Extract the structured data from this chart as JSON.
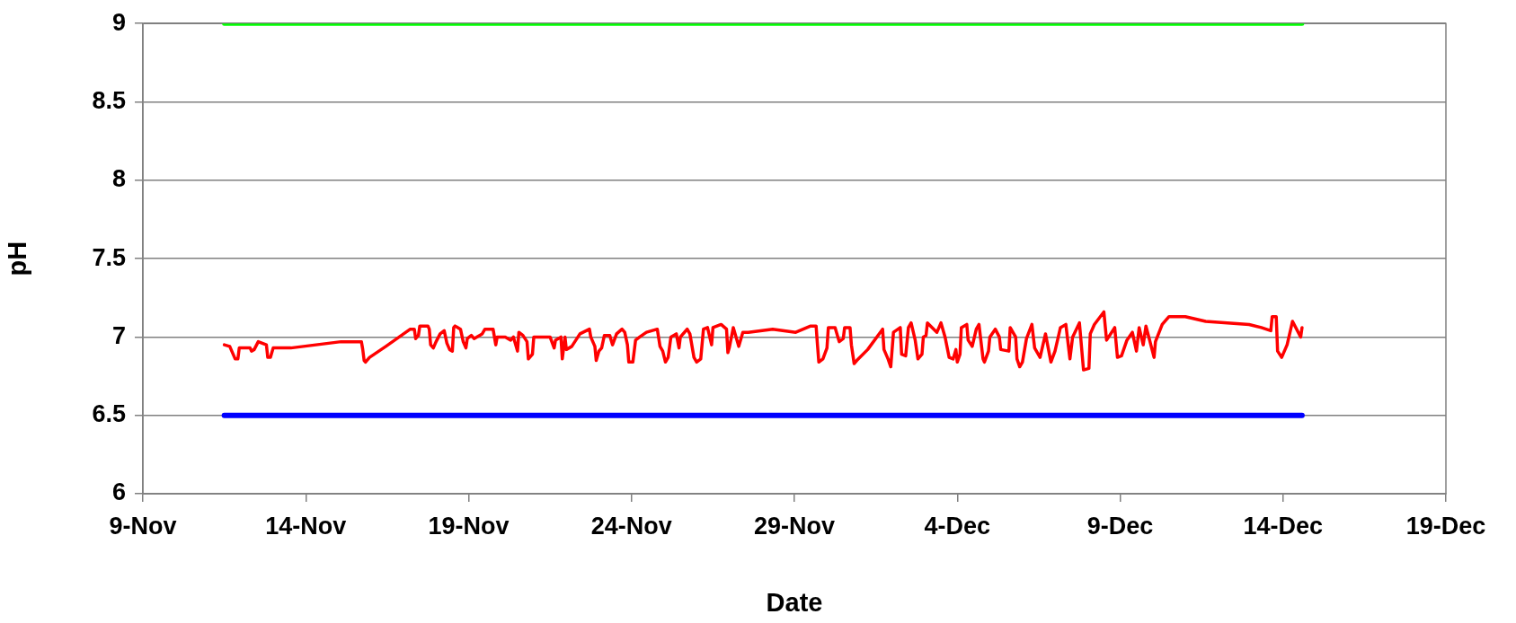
{
  "chart_data": {
    "type": "line",
    "xlabel": "Date",
    "ylabel": "pH",
    "xlim": [
      "--11-09",
      "--12-19"
    ],
    "xticks": [
      {
        "value": "--11-09",
        "label": "9-Nov"
      },
      {
        "value": "--11-14",
        "label": "14-Nov"
      },
      {
        "value": "--11-19",
        "label": "19-Nov"
      },
      {
        "value": "--11-24",
        "label": "24-Nov"
      },
      {
        "value": "--11-29",
        "label": "29-Nov"
      },
      {
        "value": "--12-04",
        "label": "4-Dec"
      },
      {
        "value": "--12-09",
        "label": "9-Dec"
      },
      {
        "value": "--12-14",
        "label": "14-Dec"
      },
      {
        "value": "--12-19",
        "label": "19-Dec"
      }
    ],
    "ylim": [
      6,
      9
    ],
    "yticks": [
      6,
      6.5,
      7,
      7.5,
      8,
      8.5,
      9
    ],
    "grid": "y",
    "legend": false,
    "marker": "none",
    "line_style": "solid",
    "series": [
      {
        "color": "#00ff00",
        "x": [
          "--11-11T12:00",
          "--12-14T14:00"
        ],
        "values": [
          9,
          9
        ]
      },
      {
        "color": "#0000ff",
        "x": [
          "--11-11T12:00",
          "--12-14T14:00"
        ],
        "values": [
          6.5,
          6.5
        ]
      },
      {
        "color": "#ff0000",
        "x": [
          "--11-11T12:00",
          "--11-11T16:00",
          "--11-11T18:00",
          "--11-11T20:00",
          "--11-11T22:00",
          "--11-11T23:00",
          "--11-12T07:00",
          "--11-12T08:00",
          "--11-12T10:00",
          "--11-12T13:00",
          "--11-12T19:00",
          "--11-12T20:00",
          "--11-12T22:00",
          "--11-13T00:00",
          "--11-13T13:00",
          "--11-15T02:00",
          "--11-15T17:00",
          "--11-15T18:00",
          "--11-15T19:00",
          "--11-15T20:00",
          "--11-15T23:00",
          "--11-16T11:00",
          "--11-17T05:00",
          "--11-17T08:00",
          "--11-17T09:00",
          "--11-17T11:00",
          "--11-17T12:00",
          "--11-17T18:00",
          "--11-17T19:00",
          "--11-17T20:00",
          "--11-17T22:00",
          "--11-18T00:00",
          "--11-18T03:00",
          "--11-18T06:00",
          "--11-18T07:00",
          "--11-18T08:00",
          "--11-18T10:00",
          "--11-18T12:00",
          "--11-18T13:00",
          "--11-18T14:00",
          "--11-18T18:00",
          "--11-18T20:00",
          "--11-18T22:00",
          "--11-18T23:00",
          "--11-19T02:00",
          "--11-19T04:00",
          "--11-19T10:00",
          "--11-19T12:00",
          "--11-19T18:00",
          "--11-19T20:00",
          "--11-19T21:00",
          "--11-20T03:00",
          "--11-20T07:00",
          "--11-20T09:00",
          "--11-20T12:00",
          "--11-20T13:00",
          "--11-20T16:00",
          "--11-20T19:00",
          "--11-20T20:00",
          "--11-20T23:00",
          "--11-21T00:00",
          "--11-21T12:00",
          "--11-21T15:00",
          "--11-21T16:00",
          "--11-21T20:00",
          "--11-21T21:00",
          "--11-21T23:00",
          "--11-22T00:00",
          "--11-22T04:00",
          "--11-22T10:00",
          "--11-22T17:00",
          "--11-22T18:00",
          "--11-22T21:00",
          "--11-22T22:00",
          "--11-23T00:00",
          "--11-23T02:00",
          "--11-23T04:00",
          "--11-23T08:00",
          "--11-23T10:00",
          "--11-23T13:00",
          "--11-23T17:00",
          "--11-23T19:00",
          "--11-23T21:00",
          "--11-23T22:00",
          "--11-24T01:00",
          "--11-24T03:00",
          "--11-24T06:00",
          "--11-24T11:00",
          "--11-24T19:00",
          "--11-24T21:00",
          "--11-24T23:00",
          "--11-25T01:00",
          "--11-25T03:00",
          "--11-25T05:00",
          "--11-25T09:00",
          "--11-25T11:00",
          "--11-25T12:00",
          "--11-25T17:00",
          "--11-25T19:00",
          "--11-25T22:00",
          "--11-26T00:00",
          "--11-26T03:00",
          "--11-26T05:00",
          "--11-26T08:00",
          "--11-26T11:00",
          "--11-26T12:00",
          "--11-26T18:00",
          "--11-26T22:00",
          "--11-26T23:00",
          "--11-27T00:00",
          "--11-27T03:00",
          "--11-27T07:00",
          "--11-27T10:00",
          "--11-27T14:00",
          "--11-28T08:00",
          "--11-29T01:00",
          "--11-29T12:00",
          "--11-29T16:00",
          "--11-29T17:00",
          "--11-29T18:00",
          "--11-29T21:00",
          "--11-30T00:00",
          "--11-30T01:00",
          "--11-30T06:00",
          "--11-30T09:00",
          "--11-30T12:00",
          "--11-30T13:00",
          "--11-30T17:00",
          "--11-30T18:00",
          "--11-30T20:00",
          "--11-30T22:00",
          "--12-01T06:00",
          "--12-01T17:00",
          "--12-01T18:00",
          "--12-01T21:00",
          "--12-01T23:00",
          "--12-02T01:00",
          "--12-02T06:00",
          "--12-02T07:00",
          "--12-02T10:00",
          "--12-02T12:00",
          "--12-02T14:00",
          "--12-02T17:00",
          "--12-02T19:00",
          "--12-02T22:00",
          "--12-02T23:00",
          "--12-03T01:00",
          "--12-03T02:00",
          "--12-03T09:00",
          "--12-03T12:00",
          "--12-03T15:00",
          "--12-03T18:00",
          "--12-03T21:00",
          "--12-03T23:00",
          "--12-04T00:00",
          "--12-04T02:00",
          "--12-04T03:00",
          "--12-04T07:00",
          "--12-04T08:00",
          "--12-04T11:00",
          "--12-04T14:00",
          "--12-04T16:00",
          "--12-04T19:00",
          "--12-04T20:00",
          "--12-04T23:00",
          "--12-05T00:00",
          "--12-05T04:00",
          "--12-05T07:00",
          "--12-05T08:00",
          "--12-05T14:00",
          "--12-05T15:00",
          "--12-05T19:00",
          "--12-05T20:00",
          "--12-05T22:00",
          "--12-06T00:00",
          "--12-06T03:00",
          "--12-06T07:00",
          "--12-06T09:00",
          "--12-06T13:00",
          "--12-06T17:00",
          "--12-06T21:00",
          "--12-07T00:00",
          "--12-07T04:00",
          "--12-07T08:00",
          "--12-07T11:00",
          "--12-07T13:00",
          "--12-07T18:00",
          "--12-07T21:00",
          "--12-08T01:00",
          "--12-08T02:00",
          "--12-08T05:00",
          "--12-08T12:00",
          "--12-08T14:00",
          "--12-08T20:00",
          "--12-08T22:00",
          "--12-09T01:00",
          "--12-09T05:00",
          "--12-09T09:00",
          "--12-09T12:00",
          "--12-09T14:00",
          "--12-09T17:00",
          "--12-09T19:00",
          "--12-10T01:00",
          "--12-10T02:00",
          "--12-10T07:00",
          "--12-10T12:00",
          "--12-11T00:00",
          "--12-11T15:00",
          "--12-12T23:00",
          "--12-13T08:00",
          "--12-13T15:00",
          "--12-13T16:00",
          "--12-13T19:00",
          "--12-13T20:00",
          "--12-13T23:00",
          "--12-14T03:00",
          "--12-14T07:00",
          "--12-14T13:00",
          "--12-14T14:00"
        ],
        "values": [
          6.95,
          6.94,
          6.9,
          6.86,
          6.86,
          6.93,
          6.93,
          6.91,
          6.92,
          6.97,
          6.95,
          6.87,
          6.87,
          6.93,
          6.93,
          6.97,
          6.97,
          6.92,
          6.85,
          6.84,
          6.87,
          6.94,
          7.05,
          7.05,
          6.99,
          7.01,
          7.07,
          7.07,
          7.05,
          6.95,
          6.93,
          6.97,
          7.02,
          7.04,
          7.0,
          6.96,
          6.92,
          6.91,
          7.06,
          7.07,
          7.05,
          6.97,
          6.93,
          6.99,
          7.01,
          6.99,
          7.02,
          7.05,
          7.05,
          6.95,
          7.0,
          7.0,
          6.98,
          7.0,
          6.91,
          7.03,
          7.01,
          6.97,
          6.86,
          6.89,
          7.0,
          7.0,
          6.93,
          6.98,
          7.0,
          6.86,
          7.0,
          6.92,
          6.94,
          7.02,
          7.05,
          7.0,
          6.94,
          6.85,
          6.91,
          6.93,
          7.01,
          7.01,
          6.95,
          7.02,
          7.05,
          7.03,
          6.95,
          6.84,
          6.84,
          6.98,
          7.0,
          7.03,
          7.05,
          6.94,
          6.91,
          6.84,
          6.87,
          7.0,
          7.02,
          6.93,
          7.0,
          7.05,
          7.02,
          6.87,
          6.84,
          6.86,
          7.05,
          7.06,
          6.95,
          7.06,
          7.08,
          7.05,
          6.9,
          6.93,
          7.06,
          6.94,
          7.03,
          7.03,
          7.05,
          7.03,
          7.07,
          7.07,
          6.95,
          6.84,
          6.86,
          6.93,
          7.06,
          7.06,
          6.97,
          6.99,
          7.06,
          7.06,
          6.95,
          6.83,
          6.85,
          6.92,
          7.05,
          6.92,
          6.86,
          6.81,
          7.03,
          7.06,
          6.89,
          6.88,
          7.06,
          7.09,
          6.98,
          6.86,
          6.89,
          7.0,
          7.01,
          7.09,
          7.03,
          7.09,
          7.0,
          6.87,
          6.86,
          6.92,
          6.84,
          6.89,
          7.06,
          7.08,
          6.98,
          6.94,
          7.05,
          7.08,
          6.86,
          6.84,
          6.91,
          7.0,
          7.05,
          7.0,
          6.92,
          6.91,
          7.06,
          7.0,
          6.86,
          6.81,
          6.84,
          6.99,
          7.08,
          6.93,
          6.87,
          7.02,
          6.84,
          6.91,
          7.06,
          7.08,
          6.86,
          7.0,
          7.09,
          6.79,
          6.8,
          7.02,
          7.08,
          7.16,
          6.98,
          7.06,
          6.87,
          6.88,
          6.98,
          7.03,
          6.91,
          7.06,
          6.95,
          7.07,
          6.87,
          6.97,
          7.08,
          7.13,
          7.13,
          7.1,
          7.08,
          7.06,
          7.04,
          7.13,
          7.13,
          6.91,
          6.87,
          6.95,
          7.1,
          7.0,
          7.06
        ]
      }
    ]
  }
}
